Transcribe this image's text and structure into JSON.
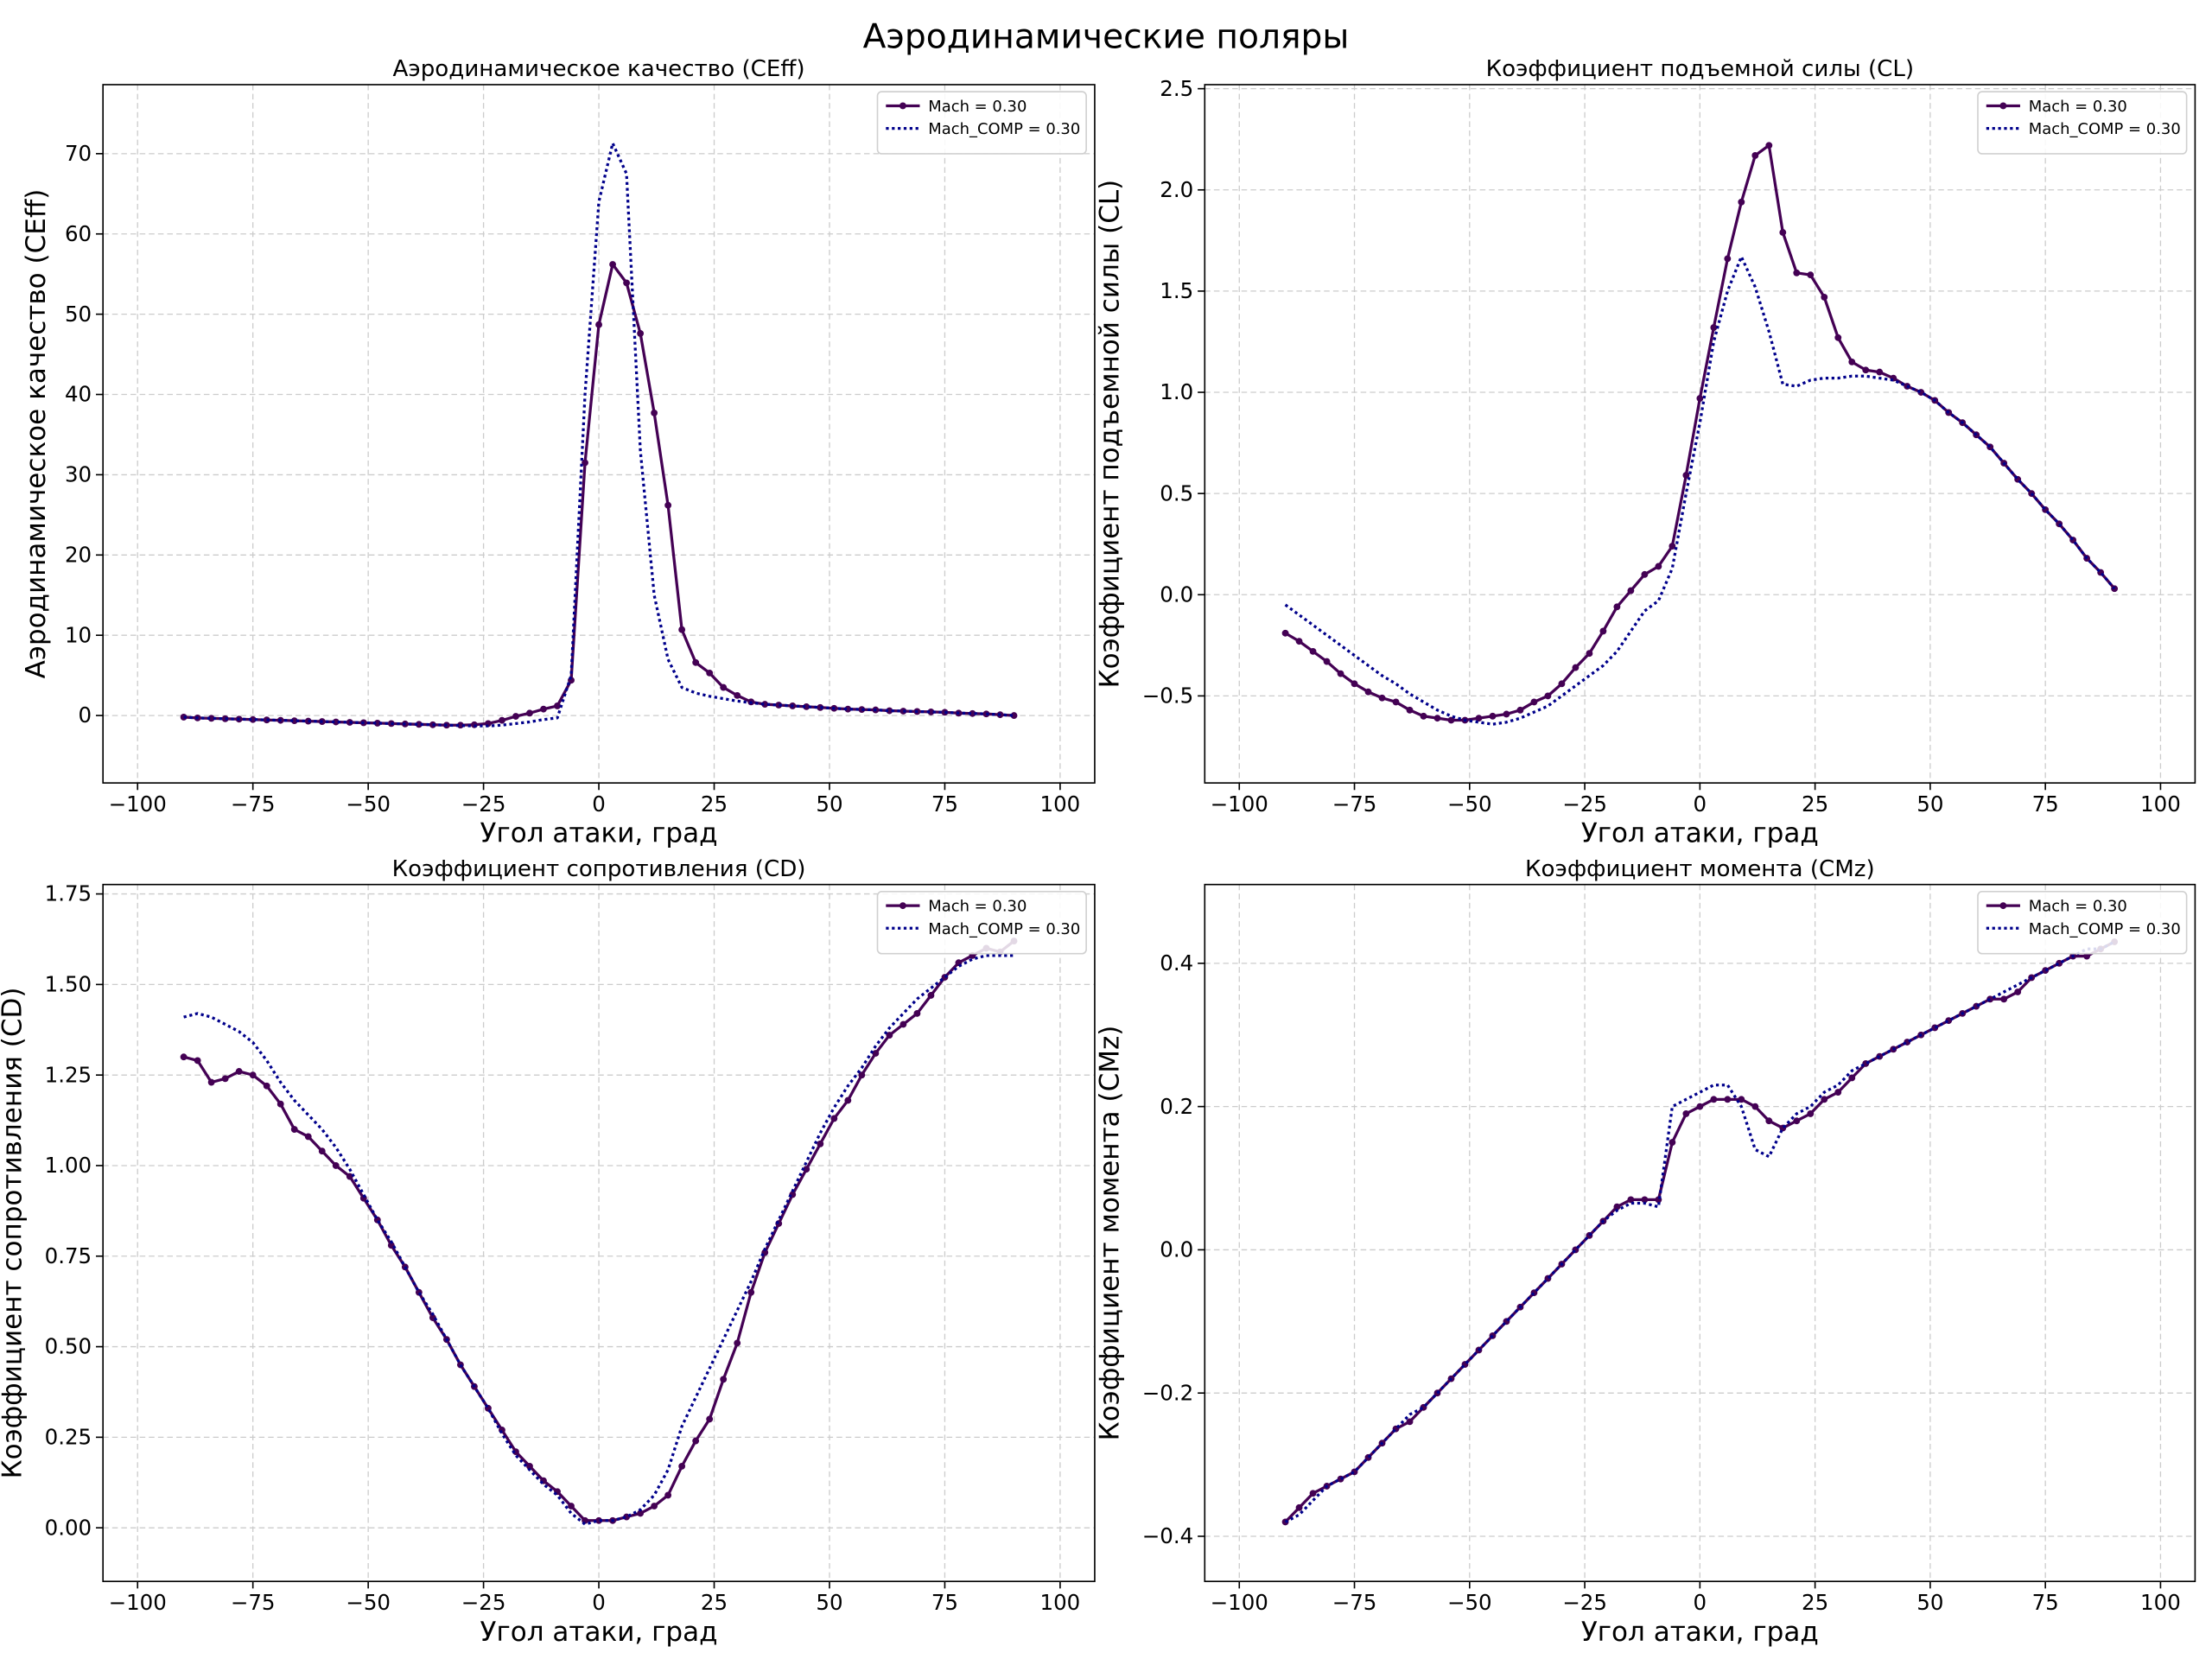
{
  "title": "Аэродинамические поляры",
  "chart_data": [
    {
      "type": "line",
      "title": "Аэродинамическое качество (CEff)",
      "xlabel": "Угол атаки, град",
      "ylabel": "Аэродинамическое качество (CEff)",
      "x": [
        -90,
        -87,
        -84,
        -81,
        -78,
        -75,
        -72,
        -69,
        -66,
        -63,
        -60,
        -57,
        -54,
        -51,
        -48,
        -45,
        -42,
        -39,
        -36,
        -33,
        -30,
        -27,
        -24,
        -21,
        -18,
        -15,
        -12,
        -9,
        -6,
        -3,
        0,
        3,
        6,
        9,
        12,
        15,
        18,
        21,
        24,
        27,
        30,
        33,
        36,
        39,
        42,
        45,
        48,
        51,
        54,
        57,
        60,
        63,
        66,
        69,
        72,
        75,
        78,
        81,
        84,
        87,
        90
      ],
      "xlim": [
        -107.5,
        107.5
      ],
      "ylim": [
        -8.4,
        78.6
      ],
      "xticks": [
        {
          "value": -100,
          "label": "−100"
        },
        {
          "value": -75,
          "label": "−75"
        },
        {
          "value": -50,
          "label": "−50"
        },
        {
          "value": -25,
          "label": "−25"
        },
        0,
        25,
        50,
        75,
        100
      ],
      "yticks": [
        0,
        10,
        20,
        30,
        40,
        50,
        60,
        70
      ],
      "grid": true,
      "legend": "upper right",
      "series": [
        {
          "name": "Mach = 0.30",
          "color": "#440154",
          "linestyle": "solid",
          "marker": "o",
          "values": [
            -0.2,
            -0.3,
            -0.35,
            -0.4,
            -0.45,
            -0.5,
            -0.55,
            -0.6,
            -0.65,
            -0.7,
            -0.75,
            -0.8,
            -0.85,
            -0.9,
            -0.95,
            -1.0,
            -1.05,
            -1.1,
            -1.15,
            -1.2,
            -1.2,
            -1.15,
            -1.0,
            -0.6,
            -0.1,
            0.3,
            0.8,
            1.2,
            4.4,
            31.5,
            48.7,
            56.2,
            53.9,
            47.6,
            37.7,
            26.2,
            10.7,
            6.6,
            5.3,
            3.5,
            2.5,
            1.7,
            1.4,
            1.3,
            1.2,
            1.1,
            1.0,
            0.9,
            0.8,
            0.75,
            0.7,
            0.6,
            0.55,
            0.5,
            0.45,
            0.4,
            0.3,
            0.25,
            0.2,
            0.1,
            0.0
          ]
        },
        {
          "name": "Mach_COMP = 0.30",
          "color": "#00008b",
          "linestyle": "dotted",
          "values": [
            -0.2,
            -0.3,
            -0.35,
            -0.4,
            -0.45,
            -0.5,
            -0.55,
            -0.6,
            -0.65,
            -0.7,
            -0.75,
            -0.8,
            -0.85,
            -0.9,
            -0.95,
            -1.0,
            -1.05,
            -1.1,
            -1.15,
            -1.2,
            -1.25,
            -1.3,
            -1.3,
            -1.2,
            -1.0,
            -0.8,
            -0.5,
            -0.3,
            5.0,
            40.0,
            64.0,
            71.3,
            67.5,
            33.0,
            15.0,
            7.0,
            3.5,
            2.8,
            2.4,
            2.1,
            1.8,
            1.6,
            1.4,
            1.3,
            1.2,
            1.1,
            1.0,
            0.9,
            0.8,
            0.75,
            0.7,
            0.6,
            0.55,
            0.5,
            0.45,
            0.4,
            0.3,
            0.25,
            0.2,
            0.1,
            0.0
          ]
        }
      ]
    },
    {
      "type": "line",
      "title": "Коэффициент подъемной силы (CL)",
      "xlabel": "Угол атаки, град",
      "ylabel": "Коэффициент подъемной силы (CL)",
      "x": [
        -90,
        -87,
        -84,
        -81,
        -78,
        -75,
        -72,
        -69,
        -66,
        -63,
        -60,
        -57,
        -54,
        -51,
        -48,
        -45,
        -42,
        -39,
        -36,
        -33,
        -30,
        -27,
        -24,
        -21,
        -18,
        -15,
        -12,
        -9,
        -6,
        -3,
        0,
        3,
        6,
        9,
        12,
        15,
        18,
        21,
        24,
        27,
        30,
        33,
        36,
        39,
        42,
        45,
        48,
        51,
        54,
        57,
        60,
        63,
        66,
        69,
        72,
        75,
        78,
        81,
        84,
        87,
        90
      ],
      "xlim": [
        -107.5,
        107.5
      ],
      "ylim": [
        -0.93,
        2.52
      ],
      "xticks": [
        {
          "value": -100,
          "label": "−100"
        },
        {
          "value": -75,
          "label": "−75"
        },
        {
          "value": -50,
          "label": "−50"
        },
        {
          "value": -25,
          "label": "−25"
        },
        0,
        25,
        50,
        75,
        100
      ],
      "yticks": [
        {
          "value": -0.5,
          "label": "−0.5"
        },
        {
          "value": 0,
          "label": "0.0"
        },
        0.5,
        {
          "value": 1,
          "label": "1.0"
        },
        1.5,
        {
          "value": 2,
          "label": "2.0"
        },
        2.5
      ],
      "grid": true,
      "legend": "upper right",
      "series": [
        {
          "name": "Mach = 0.30",
          "color": "#440154",
          "linestyle": "solid",
          "marker": "o",
          "values": [
            -0.19,
            -0.23,
            -0.28,
            -0.33,
            -0.39,
            -0.44,
            -0.48,
            -0.51,
            -0.53,
            -0.57,
            -0.6,
            -0.61,
            -0.62,
            -0.62,
            -0.61,
            -0.6,
            -0.59,
            -0.57,
            -0.53,
            -0.5,
            -0.44,
            -0.36,
            -0.29,
            -0.18,
            -0.06,
            0.02,
            0.1,
            0.14,
            0.24,
            0.59,
            0.97,
            1.32,
            1.66,
            1.94,
            2.17,
            2.22,
            1.79,
            1.59,
            1.58,
            1.47,
            1.27,
            1.15,
            1.11,
            1.1,
            1.07,
            1.03,
            1.0,
            0.96,
            0.9,
            0.85,
            0.79,
            0.73,
            0.65,
            0.57,
            0.5,
            0.42,
            0.35,
            0.27,
            0.18,
            0.11,
            0.03
          ]
        },
        {
          "name": "Mach_COMP = 0.30",
          "color": "#00008b",
          "linestyle": "dotted",
          "values": [
            -0.05,
            -0.1,
            -0.15,
            -0.2,
            -0.25,
            -0.3,
            -0.35,
            -0.4,
            -0.44,
            -0.49,
            -0.53,
            -0.57,
            -0.6,
            -0.62,
            -0.63,
            -0.64,
            -0.63,
            -0.61,
            -0.58,
            -0.55,
            -0.5,
            -0.45,
            -0.4,
            -0.35,
            -0.28,
            -0.18,
            -0.08,
            -0.03,
            0.13,
            0.5,
            0.85,
            1.25,
            1.5,
            1.67,
            1.52,
            1.3,
            1.04,
            1.03,
            1.06,
            1.07,
            1.07,
            1.08,
            1.08,
            1.07,
            1.06,
            1.03,
            1.0,
            0.96,
            0.9,
            0.85,
            0.79,
            0.73,
            0.65,
            0.57,
            0.5,
            0.42,
            0.35,
            0.27,
            0.18,
            0.11,
            0.03
          ]
        }
      ]
    },
    {
      "type": "line",
      "title": "Коэффициент сопротивления (CD)",
      "xlabel": "Угол атаки, град",
      "ylabel": "Коэффициент сопротивления (CD)",
      "x": [
        -90,
        -87,
        -84,
        -81,
        -78,
        -75,
        -72,
        -69,
        -66,
        -63,
        -60,
        -57,
        -54,
        -51,
        -48,
        -45,
        -42,
        -39,
        -36,
        -33,
        -30,
        -27,
        -24,
        -21,
        -18,
        -15,
        -12,
        -9,
        -6,
        -3,
        0,
        3,
        6,
        9,
        12,
        15,
        18,
        21,
        24,
        27,
        30,
        33,
        36,
        39,
        42,
        45,
        48,
        51,
        54,
        57,
        60,
        63,
        66,
        69,
        72,
        75,
        78,
        81,
        84,
        87,
        90
      ],
      "xlim": [
        -107.5,
        107.5
      ],
      "ylim": [
        -0.148,
        1.776
      ],
      "xticks": [
        {
          "value": -100,
          "label": "−100"
        },
        {
          "value": -75,
          "label": "−75"
        },
        {
          "value": -50,
          "label": "−50"
        },
        {
          "value": -25,
          "label": "−25"
        },
        0,
        25,
        50,
        75,
        100
      ],
      "yticks": [
        {
          "value": 0,
          "label": "0.00"
        },
        0.25,
        {
          "value": 0.5,
          "label": "0.50"
        },
        0.75,
        {
          "value": 1,
          "label": "1.00"
        },
        1.25,
        {
          "value": 1.5,
          "label": "1.50"
        },
        1.75
      ],
      "grid": true,
      "legend": "upper right",
      "series": [
        {
          "name": "Mach = 0.30",
          "color": "#440154",
          "linestyle": "solid",
          "marker": "o",
          "values": [
            1.3,
            1.29,
            1.23,
            1.24,
            1.26,
            1.25,
            1.22,
            1.17,
            1.1,
            1.08,
            1.04,
            1.0,
            0.97,
            0.91,
            0.85,
            0.78,
            0.72,
            0.65,
            0.58,
            0.52,
            0.45,
            0.39,
            0.33,
            0.27,
            0.21,
            0.17,
            0.13,
            0.1,
            0.06,
            0.02,
            0.02,
            0.02,
            0.03,
            0.04,
            0.06,
            0.09,
            0.17,
            0.24,
            0.3,
            0.41,
            0.51,
            0.65,
            0.76,
            0.84,
            0.92,
            0.99,
            1.06,
            1.13,
            1.18,
            1.25,
            1.31,
            1.36,
            1.39,
            1.42,
            1.47,
            1.52,
            1.56,
            1.58,
            1.6,
            1.59,
            1.62
          ]
        },
        {
          "name": "Mach_COMP = 0.30",
          "color": "#00008b",
          "linestyle": "dotted",
          "values": [
            1.41,
            1.42,
            1.41,
            1.39,
            1.37,
            1.34,
            1.29,
            1.23,
            1.18,
            1.14,
            1.1,
            1.05,
            0.99,
            0.92,
            0.85,
            0.79,
            0.72,
            0.65,
            0.59,
            0.52,
            0.45,
            0.39,
            0.33,
            0.26,
            0.2,
            0.16,
            0.12,
            0.09,
            0.04,
            0.01,
            0.02,
            0.02,
            0.03,
            0.05,
            0.09,
            0.16,
            0.28,
            0.36,
            0.44,
            0.52,
            0.6,
            0.68,
            0.77,
            0.85,
            0.93,
            1.01,
            1.09,
            1.16,
            1.22,
            1.27,
            1.33,
            1.38,
            1.42,
            1.46,
            1.49,
            1.52,
            1.55,
            1.57,
            1.58,
            1.58,
            1.58
          ]
        }
      ]
    },
    {
      "type": "line",
      "title": "Коэффициент момента (CMz)",
      "xlabel": "Угол атаки, град",
      "ylabel": "Коэффициент момента (CMz)",
      "x": [
        -90,
        -87,
        -84,
        -81,
        -78,
        -75,
        -72,
        -69,
        -66,
        -63,
        -60,
        -57,
        -54,
        -51,
        -48,
        -45,
        -42,
        -39,
        -36,
        -33,
        -30,
        -27,
        -24,
        -21,
        -18,
        -15,
        -12,
        -9,
        -6,
        -3,
        0,
        3,
        6,
        9,
        12,
        15,
        18,
        21,
        24,
        27,
        30,
        33,
        36,
        39,
        42,
        45,
        48,
        51,
        54,
        57,
        60,
        63,
        66,
        69,
        72,
        75,
        78,
        81,
        84,
        87,
        90
      ],
      "xlim": [
        -107.5,
        107.5
      ],
      "ylim": [
        -0.463,
        0.51
      ],
      "xticks": [
        {
          "value": -100,
          "label": "−100"
        },
        {
          "value": -75,
          "label": "−75"
        },
        {
          "value": -50,
          "label": "−50"
        },
        {
          "value": -25,
          "label": "−25"
        },
        0,
        25,
        50,
        75,
        100
      ],
      "yticks": [
        {
          "value": -0.4,
          "label": "−0.4"
        },
        {
          "value": -0.2,
          "label": "−0.2"
        },
        {
          "value": 0,
          "label": "0.0"
        },
        0.2,
        0.4
      ],
      "grid": true,
      "legend": "upper right",
      "series": [
        {
          "name": "Mach = 0.30",
          "color": "#440154",
          "linestyle": "solid",
          "marker": "o",
          "values": [
            -0.38,
            -0.36,
            -0.34,
            -0.33,
            -0.32,
            -0.31,
            -0.29,
            -0.27,
            -0.25,
            -0.24,
            -0.22,
            -0.2,
            -0.18,
            -0.16,
            -0.14,
            -0.12,
            -0.1,
            -0.08,
            -0.06,
            -0.04,
            -0.02,
            0.0,
            0.02,
            0.04,
            0.06,
            0.07,
            0.07,
            0.07,
            0.15,
            0.19,
            0.2,
            0.21,
            0.21,
            0.21,
            0.2,
            0.18,
            0.17,
            0.18,
            0.19,
            0.21,
            0.22,
            0.24,
            0.26,
            0.27,
            0.28,
            0.29,
            0.3,
            0.31,
            0.32,
            0.33,
            0.34,
            0.35,
            0.35,
            0.36,
            0.38,
            0.39,
            0.4,
            0.41,
            0.41,
            0.42,
            0.43
          ]
        },
        {
          "name": "Mach_COMP = 0.30",
          "color": "#00008b",
          "linestyle": "dotted",
          "values": [
            -0.38,
            -0.37,
            -0.35,
            -0.33,
            -0.32,
            -0.31,
            -0.29,
            -0.27,
            -0.25,
            -0.23,
            -0.22,
            -0.2,
            -0.18,
            -0.16,
            -0.14,
            -0.12,
            -0.1,
            -0.08,
            -0.06,
            -0.04,
            -0.02,
            0.0,
            0.02,
            0.04,
            0.055,
            0.065,
            0.065,
            0.06,
            0.2,
            0.21,
            0.22,
            0.23,
            0.23,
            0.2,
            0.14,
            0.13,
            0.17,
            0.19,
            0.2,
            0.22,
            0.23,
            0.25,
            0.26,
            0.27,
            0.28,
            0.29,
            0.3,
            0.31,
            0.32,
            0.33,
            0.34,
            0.35,
            0.36,
            0.37,
            0.38,
            0.39,
            0.4,
            0.41,
            0.42,
            0.42,
            0.43
          ]
        }
      ]
    }
  ]
}
